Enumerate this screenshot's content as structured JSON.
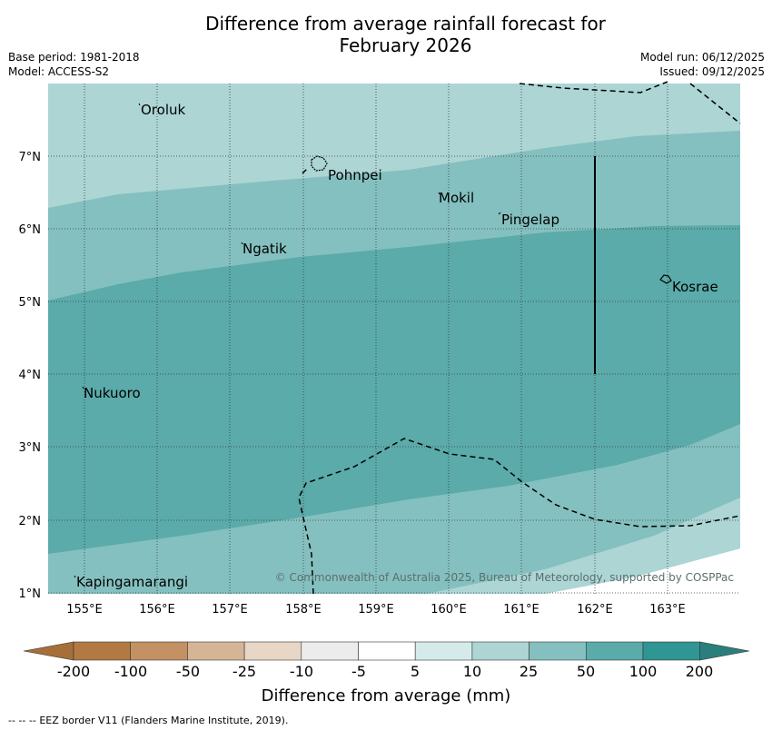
{
  "header": {
    "title_line1": "Difference from average rainfall forecast for",
    "title_line2": "February 2026",
    "base_period": "Base period: 1981-2018",
    "model": "Model: ACCESS-S2",
    "model_run": "Model run: 06/12/2025",
    "issued": "Issued: 09/12/2025"
  },
  "map": {
    "lon_labels": [
      "155°E",
      "156°E",
      "157°E",
      "158°E",
      "159°E",
      "160°E",
      "161°E",
      "162°E",
      "163°E"
    ],
    "lat_labels": [
      "7°N",
      "6°N",
      "5°N",
      "4°N",
      "3°N",
      "2°N",
      "1°N"
    ],
    "places": [
      {
        "name": "Oroluk"
      },
      {
        "name": "Pohnpei"
      },
      {
        "name": "Mokil"
      },
      {
        "name": "Pingelap"
      },
      {
        "name": "Ngatik"
      },
      {
        "name": "Kosrae"
      },
      {
        "name": "Nukuoro"
      },
      {
        "name": "Kapingamarangi"
      }
    ],
    "copyright": "© Commonwealth of Australia 2025, Bureau of Meteorology, supported by COSPPac"
  },
  "colorbar": {
    "ticks": [
      "-200",
      "-100",
      "-50",
      "-25",
      "-10",
      "-5",
      "5",
      "10",
      "25",
      "50",
      "100",
      "200"
    ],
    "colors": [
      "#a66f3a",
      "#b27a42",
      "#c39163",
      "#d6b596",
      "#e8d7c6",
      "#ececec",
      "#ffffff",
      "#d5ebea",
      "#acd5d4",
      "#84c0bf",
      "#5aabaa",
      "#2f9694",
      "#2a7f7c"
    ],
    "label": "Difference from average (mm)"
  },
  "footer": {
    "legend_symbol": "--  --  --",
    "legend_text": "EEZ border V11 (Flanders Marine Institute, 2019)."
  }
}
